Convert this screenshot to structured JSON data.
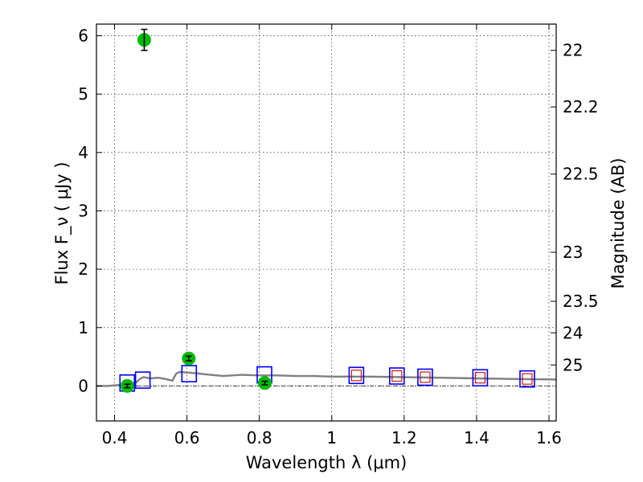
{
  "chart_data": {
    "type": "scatter",
    "title": "",
    "xlabel": "Wavelength  λ (μm)",
    "ylabel": "Flux  F_ν  ( μJy )",
    "y2label": "Magnitude (AB)",
    "xlim": [
      0.35,
      1.62
    ],
    "ylim": [
      -0.6,
      6.2
    ],
    "grid": true,
    "x_ticks": [
      0.4,
      0.6,
      0.8,
      1.0,
      1.2,
      1.4,
      1.6
    ],
    "x_tick_labels": [
      "0.4",
      "0.6",
      "0.8",
      "1",
      "1.2",
      "1.4",
      "1.6"
    ],
    "y_ticks": [
      0,
      1,
      2,
      3,
      4,
      5,
      6
    ],
    "y_tick_labels": [
      "0",
      "1",
      "2",
      "3",
      "4",
      "5",
      "6"
    ],
    "y2_ticks": [
      {
        "label": "22",
        "flux": 5.75
      },
      {
        "label": "22.2",
        "flux": 4.78
      },
      {
        "label": "22.5",
        "flux": 3.63
      },
      {
        "label": "23",
        "flux": 2.29
      },
      {
        "label": "23.5",
        "flux": 1.45
      },
      {
        "label": "24",
        "flux": 0.91
      },
      {
        "label": "25",
        "flux": 0.36
      }
    ],
    "series": [
      {
        "kind": "observed",
        "color": "#00bb00",
        "x": [
          0.435,
          0.482,
          0.605,
          0.815
        ],
        "y": [
          0.0,
          5.93,
          0.47,
          0.05
        ],
        "yerr": [
          0.03,
          0.18,
          0.04,
          0.03
        ]
      },
      {
        "kind": "model-bands",
        "color": "#0000ff",
        "x": [
          0.435,
          0.478,
          0.606,
          0.814,
          1.068,
          1.18,
          1.258,
          1.41,
          1.54
        ],
        "y": [
          0.05,
          0.1,
          0.21,
          0.19,
          0.18,
          0.17,
          0.15,
          0.14,
          0.12
        ]
      },
      {
        "kind": "model-bands-nir",
        "color": "#cc0000",
        "x": [
          1.068,
          1.18,
          1.258,
          1.41,
          1.54
        ],
        "y": [
          0.18,
          0.17,
          0.15,
          0.14,
          0.12
        ]
      },
      {
        "kind": "sed-model",
        "color": "#808080",
        "x": [
          0.35,
          0.38,
          0.4,
          0.42,
          0.44,
          0.46,
          0.47,
          0.48,
          0.5,
          0.52,
          0.54,
          0.56,
          0.57,
          0.58,
          0.6,
          0.62,
          0.65,
          0.7,
          0.75,
          0.8,
          0.85,
          0.9,
          0.95,
          1.0,
          1.1,
          1.2,
          1.3,
          1.4,
          1.5,
          1.62
        ],
        "y": [
          0.0,
          0.0,
          0.01,
          0.02,
          0.03,
          0.06,
          0.12,
          0.15,
          0.13,
          0.14,
          0.12,
          0.09,
          0.21,
          0.24,
          0.23,
          0.22,
          0.2,
          0.17,
          0.19,
          0.18,
          0.18,
          0.17,
          0.17,
          0.16,
          0.16,
          0.15,
          0.14,
          0.13,
          0.12,
          0.11
        ]
      }
    ]
  }
}
